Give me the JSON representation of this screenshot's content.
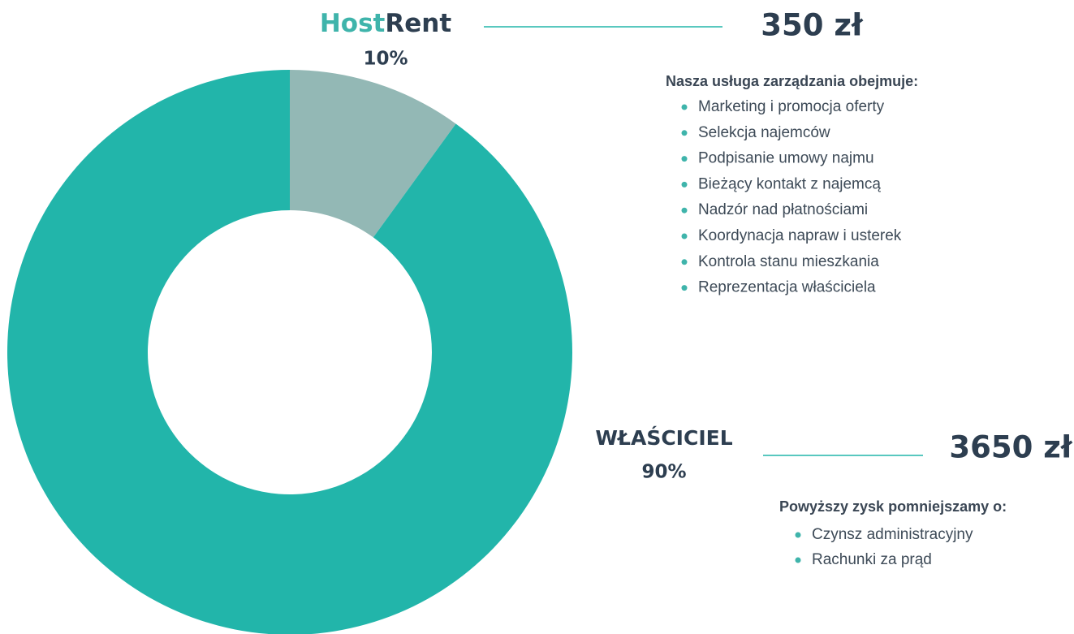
{
  "chart_data": {
    "type": "donut",
    "categories": [
      "HostRent",
      "WŁAŚCICIEL"
    ],
    "values": [
      10,
      90
    ],
    "value_labels": [
      "10%",
      "90%"
    ],
    "colors": [
      "#93b8b5",
      "#22b5aa"
    ],
    "annotations": [
      "350 zł",
      "3650 zł"
    ]
  },
  "lists": [
    {
      "heading": "Nasza usługa zarządzania obejmuje:",
      "items": [
        "Marketing i promocja oferty",
        "Selekcja najemców",
        "Podpisanie umowy najmu",
        "Bieżący kontakt z najemcą",
        "Nadzór nad płatnościami",
        "Koordynacja napraw i usterek",
        "Kontrola stanu mieszkania",
        "Reprezentacja właściciela"
      ]
    },
    {
      "heading": "Powyższy zysk pomniejszamy o:",
      "items": [
        "Czynsz administracyjny",
        "Rachunki za prąd"
      ]
    }
  ]
}
